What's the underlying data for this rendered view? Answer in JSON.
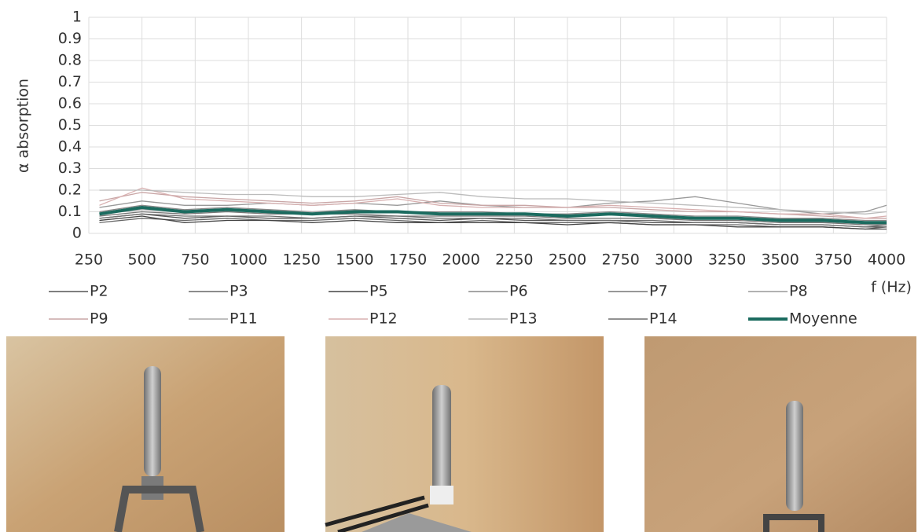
{
  "chart_data": {
    "type": "line",
    "y_label": "α absorption",
    "x_label": "f (Hz)",
    "x": [
      300,
      500,
      700,
      900,
      1100,
      1300,
      1500,
      1700,
      1900,
      2100,
      2300,
      2500,
      2700,
      2900,
      3100,
      3300,
      3500,
      3700,
      3900,
      4000
    ],
    "xlim": [
      250,
      4000
    ],
    "xticks": [
      250,
      500,
      750,
      1000,
      1250,
      1500,
      1750,
      2000,
      2250,
      2500,
      2750,
      3000,
      3250,
      3500,
      3750,
      4000
    ],
    "ylim": [
      0,
      1
    ],
    "yticks": [
      0,
      0.1,
      0.2,
      0.3,
      0.4,
      0.5,
      0.6,
      0.7,
      0.8,
      0.9,
      1
    ],
    "grid": true,
    "series": [
      {
        "name": "P2",
        "color": "#555555",
        "values": [
          0.07,
          0.09,
          0.07,
          0.08,
          0.07,
          0.07,
          0.08,
          0.07,
          0.06,
          0.07,
          0.06,
          0.06,
          0.06,
          0.05,
          0.05,
          0.05,
          0.04,
          0.04,
          0.03,
          0.03
        ]
      },
      {
        "name": "P3",
        "color": "#666666",
        "values": [
          0.05,
          0.07,
          0.06,
          0.07,
          0.06,
          0.06,
          0.07,
          0.06,
          0.05,
          0.06,
          0.05,
          0.05,
          0.05,
          0.04,
          0.04,
          0.04,
          0.03,
          0.03,
          0.02,
          0.03
        ]
      },
      {
        "name": "P5",
        "color": "#444444",
        "values": [
          0.06,
          0.08,
          0.05,
          0.06,
          0.06,
          0.05,
          0.06,
          0.05,
          0.05,
          0.05,
          0.05,
          0.04,
          0.05,
          0.04,
          0.04,
          0.03,
          0.03,
          0.03,
          0.02,
          0.02
        ]
      },
      {
        "name": "P6",
        "color": "#888888",
        "values": [
          0.1,
          0.13,
          0.11,
          0.12,
          0.11,
          0.1,
          0.11,
          0.1,
          0.1,
          0.1,
          0.09,
          0.09,
          0.1,
          0.09,
          0.08,
          0.08,
          0.07,
          0.07,
          0.06,
          0.06
        ]
      },
      {
        "name": "P7",
        "color": "#777777",
        "values": [
          0.08,
          0.1,
          0.09,
          0.1,
          0.09,
          0.09,
          0.09,
          0.08,
          0.08,
          0.08,
          0.08,
          0.07,
          0.07,
          0.07,
          0.06,
          0.06,
          0.05,
          0.05,
          0.04,
          0.04
        ]
      },
      {
        "name": "P8",
        "color": "#999999",
        "values": [
          0.12,
          0.15,
          0.13,
          0.13,
          0.14,
          0.13,
          0.14,
          0.13,
          0.15,
          0.13,
          0.12,
          0.12,
          0.14,
          0.15,
          0.17,
          0.14,
          0.11,
          0.09,
          0.1,
          0.13
        ]
      },
      {
        "name": "P9",
        "color": "#c9a6a6",
        "values": [
          0.15,
          0.19,
          0.17,
          0.16,
          0.15,
          0.14,
          0.15,
          0.17,
          0.14,
          0.13,
          0.13,
          0.12,
          0.12,
          0.11,
          0.1,
          0.1,
          0.09,
          0.08,
          0.07,
          0.07
        ]
      },
      {
        "name": "P11",
        "color": "#aaaaaa",
        "values": [
          0.09,
          0.11,
          0.1,
          0.11,
          0.1,
          0.1,
          0.1,
          0.1,
          0.09,
          0.09,
          0.09,
          0.08,
          0.09,
          0.08,
          0.07,
          0.07,
          0.06,
          0.06,
          0.05,
          0.05
        ]
      },
      {
        "name": "P12",
        "color": "#d8b0b0",
        "values": [
          0.13,
          0.21,
          0.16,
          0.15,
          0.14,
          0.13,
          0.14,
          0.16,
          0.13,
          0.12,
          0.12,
          0.12,
          0.13,
          0.12,
          0.11,
          0.1,
          0.09,
          0.09,
          0.07,
          0.08
        ]
      },
      {
        "name": "P13",
        "color": "#bbbbbb",
        "values": [
          0.2,
          0.2,
          0.19,
          0.18,
          0.18,
          0.17,
          0.17,
          0.18,
          0.19,
          0.17,
          0.16,
          0.16,
          0.15,
          0.14,
          0.13,
          0.12,
          0.11,
          0.1,
          0.09,
          0.1
        ]
      },
      {
        "name": "P14",
        "color": "#6f6f6f",
        "values": [
          0.07,
          0.09,
          0.08,
          0.08,
          0.08,
          0.07,
          0.08,
          0.08,
          0.07,
          0.07,
          0.07,
          0.06,
          0.06,
          0.06,
          0.05,
          0.05,
          0.04,
          0.04,
          0.03,
          0.04
        ]
      },
      {
        "name": "Moyenne",
        "color": "#1b6b5f",
        "values": [
          0.09,
          0.12,
          0.1,
          0.11,
          0.1,
          0.09,
          0.1,
          0.1,
          0.09,
          0.09,
          0.09,
          0.08,
          0.09,
          0.08,
          0.07,
          0.07,
          0.06,
          0.06,
          0.05,
          0.05
        ]
      }
    ]
  }
}
